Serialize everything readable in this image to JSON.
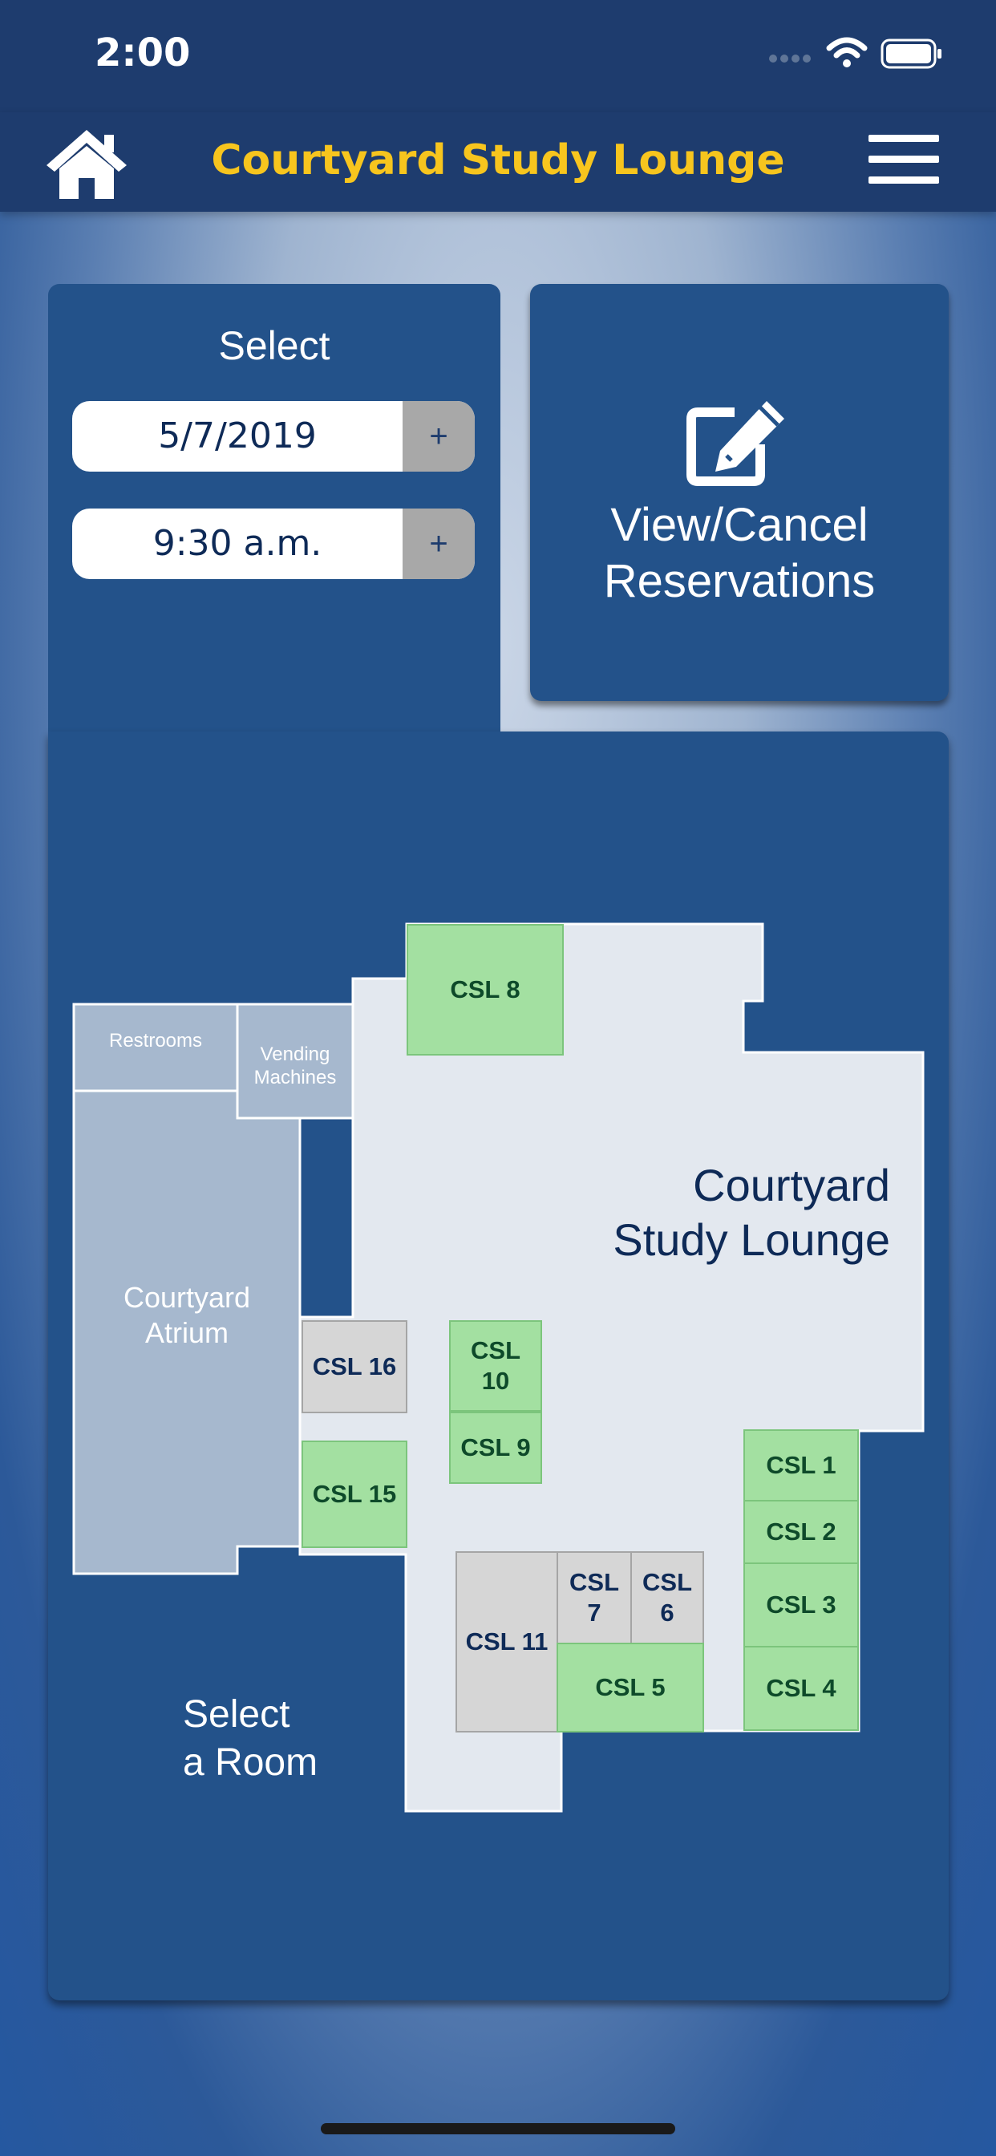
{
  "status_bar": {
    "time": "2:00"
  },
  "header": {
    "title": "Courtyard Study Lounge",
    "home_icon": "home-icon",
    "menu_icon": "hamburger-menu-icon"
  },
  "select_panel": {
    "label": "Select",
    "date": {
      "value": "5/7/2019",
      "plus": "+"
    },
    "time": {
      "value": "9:30 a.m.",
      "plus": "+"
    }
  },
  "reservations": {
    "icon": "edit-icon",
    "line1": "View/Cancel",
    "line2": "Reservations"
  },
  "map": {
    "lounge_line1": "Courtyard",
    "lounge_line2": "Study Lounge",
    "atrium_line1": "Courtyard",
    "atrium_line2": "Atrium",
    "restrooms": "Restrooms",
    "vending_line1": "Vending",
    "vending_line2": "Machines",
    "prompt_line1": "Select",
    "prompt_line2": "a Room",
    "rooms": {
      "csl8": "CSL 8",
      "csl16": "CSL 16",
      "csl10_a": "CSL",
      "csl10_b": "10",
      "csl9": "CSL 9",
      "csl15": "CSL 15",
      "csl1": "CSL 1",
      "csl2": "CSL 2",
      "csl3": "CSL 3",
      "csl4": "CSL 4",
      "csl11": "CSL 11",
      "csl7_a": "CSL",
      "csl7_b": "7",
      "csl6_a": "CSL",
      "csl6_b": "6",
      "csl5": "CSL 5"
    },
    "colors": {
      "available": "#a3e0a1",
      "unavailable": "#d6d6d6",
      "floor": "#e3e8ef",
      "atrium": "#a6b8ce"
    }
  }
}
